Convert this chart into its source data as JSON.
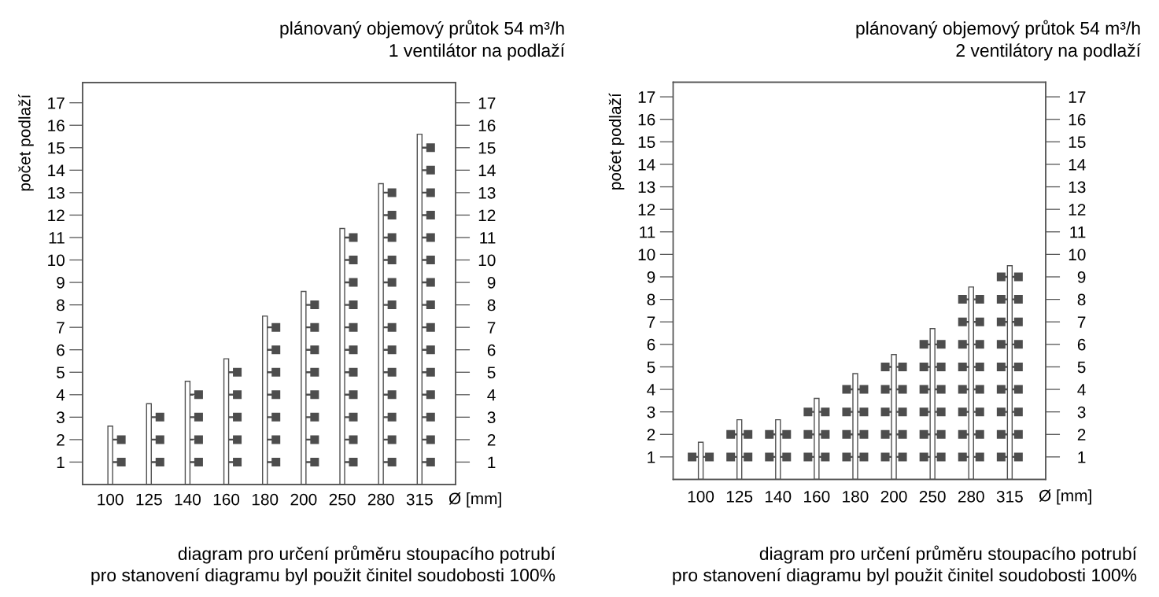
{
  "chart_data": [
    {
      "type": "bar",
      "title": "plánovaný objemový průtok 54 m³/h",
      "subtitle": "1 ventilátor na podlaží",
      "ylabel": "počet podlaží",
      "xlabel": "Ø [mm]",
      "annotations": [
        "diagram pro určení průměru stoupacího potrubí",
        "pro stanovení diagramu byl použit činitel soudobosti 100%"
      ],
      "categories": [
        "100",
        "125",
        "140",
        "160",
        "180",
        "200",
        "250",
        "280",
        "315"
      ],
      "series": [
        {
          "color": "#505050",
          "values": [
            2.6,
            3.6,
            4.6,
            5.6,
            7.5,
            8.6,
            11.4,
            13.4,
            15.6
          ]
        },
        {
          "type": "scatter",
          "color": "#4d4d4d",
          "x": [
            "100",
            "100",
            "125",
            "125",
            "125",
            "140",
            "140",
            "140",
            "140",
            "160",
            "160",
            "160",
            "160",
            "160",
            "180",
            "180",
            "180",
            "180",
            "180",
            "180",
            "180",
            "200",
            "200",
            "200",
            "200",
            "200",
            "200",
            "200",
            "200",
            "250",
            "250",
            "250",
            "250",
            "250",
            "250",
            "250",
            "250",
            "250",
            "250",
            "250",
            "280",
            "280",
            "280",
            "280",
            "280",
            "280",
            "280",
            "280",
            "280",
            "280",
            "280",
            "280",
            "280",
            "315",
            "315",
            "315",
            "315",
            "315",
            "315",
            "315",
            "315",
            "315",
            "315",
            "315",
            "315",
            "315",
            "315",
            "315"
          ],
          "values": [
            1,
            2,
            1,
            2,
            3,
            1,
            2,
            3,
            4,
            1,
            2,
            3,
            4,
            5,
            1,
            2,
            3,
            4,
            5,
            6,
            7,
            1,
            2,
            3,
            4,
            5,
            6,
            7,
            8,
            1,
            2,
            3,
            4,
            5,
            6,
            7,
            8,
            9,
            10,
            11,
            1,
            2,
            3,
            4,
            5,
            6,
            7,
            8,
            9,
            10,
            11,
            12,
            13,
            1,
            2,
            3,
            4,
            5,
            6,
            7,
            8,
            9,
            10,
            11,
            12,
            13,
            14,
            15
          ]
        }
      ],
      "marker": "square",
      "ylim": [
        0,
        17.9
      ],
      "yticks": [
        1,
        2,
        3,
        4,
        5,
        6,
        7,
        8,
        9,
        10,
        11,
        12,
        13,
        14,
        15,
        16,
        17
      ],
      "y2lim": [
        0,
        17.9
      ],
      "y2ticks": [
        1,
        2,
        3,
        4,
        5,
        6,
        7,
        8,
        9,
        10,
        11,
        12,
        13,
        14,
        15,
        16,
        17
      ]
    },
    {
      "type": "bar",
      "title": "plánovaný objemový průtok 54 m³/h",
      "subtitle": "2 ventilátory na podlaží",
      "ylabel": "počet podlaží",
      "xlabel": "Ø [mm]",
      "annotations": [
        "diagram pro určení průměru stoupacího potrubí",
        "pro stanovení diagramu byl použit činitel soudobosti 100%"
      ],
      "categories": [
        "100",
        "125",
        "140",
        "160",
        "180",
        "200",
        "250",
        "280",
        "315"
      ],
      "series": [
        {
          "color": "#505050",
          "values": [
            1.65,
            2.65,
            2.65,
            3.6,
            4.7,
            5.55,
            6.7,
            8.55,
            9.5
          ]
        },
        {
          "type": "scatter",
          "color": "#4d4d4d",
          "x": [
            "100",
            "125",
            "125",
            "140",
            "140",
            "160",
            "160",
            "160",
            "180",
            "180",
            "180",
            "180",
            "200",
            "200",
            "200",
            "200",
            "200",
            "250",
            "250",
            "250",
            "250",
            "250",
            "250",
            "280",
            "280",
            "280",
            "280",
            "280",
            "280",
            "280",
            "280",
            "315",
            "315",
            "315",
            "315",
            "315",
            "315",
            "315",
            "315",
            "315"
          ],
          "values": [
            1,
            1,
            2,
            1,
            2,
            1,
            2,
            3,
            1,
            2,
            3,
            4,
            1,
            2,
            3,
            4,
            5,
            1,
            2,
            3,
            4,
            5,
            6,
            1,
            2,
            3,
            4,
            5,
            6,
            7,
            8,
            1,
            2,
            3,
            4,
            5,
            6,
            7,
            8,
            9
          ]
        },
        {
          "type": "scatter",
          "color": "#4d4d4d",
          "x": [
            "100",
            "125",
            "125",
            "140",
            "140",
            "160",
            "160",
            "160",
            "180",
            "180",
            "180",
            "180",
            "200",
            "200",
            "200",
            "200",
            "200",
            "250",
            "250",
            "250",
            "250",
            "250",
            "250",
            "280",
            "280",
            "280",
            "280",
            "280",
            "280",
            "280",
            "280",
            "315",
            "315",
            "315",
            "315",
            "315",
            "315",
            "315",
            "315",
            "315"
          ],
          "values": [
            1,
            1,
            2,
            1,
            2,
            1,
            2,
            3,
            1,
            2,
            3,
            4,
            1,
            2,
            3,
            4,
            5,
            1,
            2,
            3,
            4,
            5,
            6,
            1,
            2,
            3,
            4,
            5,
            6,
            7,
            8,
            1,
            2,
            3,
            4,
            5,
            6,
            7,
            8,
            9
          ]
        }
      ],
      "marker": "square",
      "ylim": [
        0,
        17.65
      ],
      "yticks": [
        1,
        2,
        3,
        4,
        5,
        6,
        7,
        8,
        9,
        10,
        11,
        12,
        13,
        14,
        15,
        16,
        17
      ],
      "y2lim": [
        0,
        17.65
      ],
      "y2ticks": [
        1,
        2,
        3,
        4,
        5,
        6,
        7,
        8,
        9,
        10,
        11,
        12,
        13,
        14,
        15,
        16,
        17
      ]
    }
  ]
}
